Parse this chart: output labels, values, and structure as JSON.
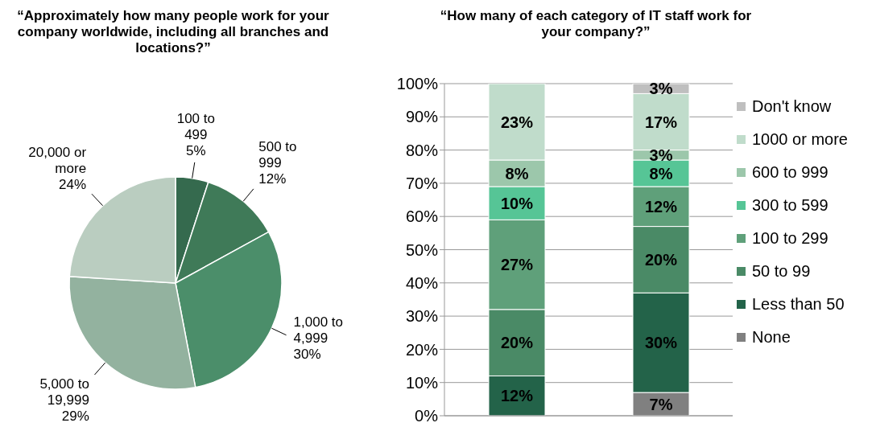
{
  "chart_data": [
    {
      "type": "pie",
      "title": "“Approximately how many people work for your company worldwide, including all branches and locations?”",
      "categories": [
        "100 to 499",
        "500 to 999",
        "1,000 to 4,999",
        "5,000 to 19,999",
        "20,000 or more"
      ],
      "values": [
        5,
        12,
        30,
        29,
        24
      ],
      "value_labels": [
        "5%",
        "12%",
        "30%",
        "29%",
        "24%"
      ],
      "colors": [
        "#356a4e",
        "#3f7a58",
        "#4b8e6a",
        "#93b29f",
        "#bacdc0"
      ]
    },
    {
      "type": "bar",
      "title": "“How many of each category of IT staff work for your company?”",
      "categories": [
        null,
        null
      ],
      "stacked": true,
      "ylim": [
        0,
        100
      ],
      "yticks": [
        {
          "value": 0,
          "label": "0%"
        },
        {
          "value": 10,
          "label": "10%"
        },
        {
          "value": 20,
          "label": "20%"
        },
        {
          "value": 30,
          "label": "30%"
        },
        {
          "value": 40,
          "label": "40%"
        },
        {
          "value": 50,
          "label": "50%"
        },
        {
          "value": 60,
          "label": "60%"
        },
        {
          "value": 70,
          "label": "70%"
        },
        {
          "value": 80,
          "label": "80%"
        },
        {
          "value": 90,
          "label": "90%"
        },
        {
          "value": 100,
          "label": "100%"
        }
      ],
      "grid": "y",
      "legend": "right",
      "tick_labels": "y",
      "series": [
        {
          "name": "None",
          "color": "#808080",
          "values": [
            null,
            7
          ],
          "value_labels": [
            null,
            "7%"
          ]
        },
        {
          "name": "Less than 50",
          "color": "#236349",
          "values": [
            12,
            30
          ],
          "value_labels": [
            "12%",
            "30%"
          ]
        },
        {
          "name": "50 to 99",
          "color": "#4a8a66",
          "values": [
            20,
            20
          ],
          "value_labels": [
            "20%",
            "20%"
          ]
        },
        {
          "name": "100 to 299",
          "color": "#5fa07a",
          "values": [
            27,
            12
          ],
          "value_labels": [
            "27%",
            "12%"
          ]
        },
        {
          "name": "300 to 599",
          "color": "#56c596",
          "values": [
            10,
            8
          ],
          "value_labels": [
            "10%",
            "8%"
          ]
        },
        {
          "name": "600 to 999",
          "color": "#9cc7ab",
          "values": [
            8,
            3
          ],
          "value_labels": [
            "8%",
            "3%"
          ]
        },
        {
          "name": "1000 or more",
          "color": "#c0dccb",
          "values": [
            23,
            17
          ],
          "value_labels": [
            "23%",
            "17%"
          ]
        },
        {
          "name": "Don't know",
          "color": "#bfbfbf",
          "values": [
            null,
            3
          ],
          "value_labels": [
            null,
            "3%"
          ]
        }
      ]
    }
  ]
}
